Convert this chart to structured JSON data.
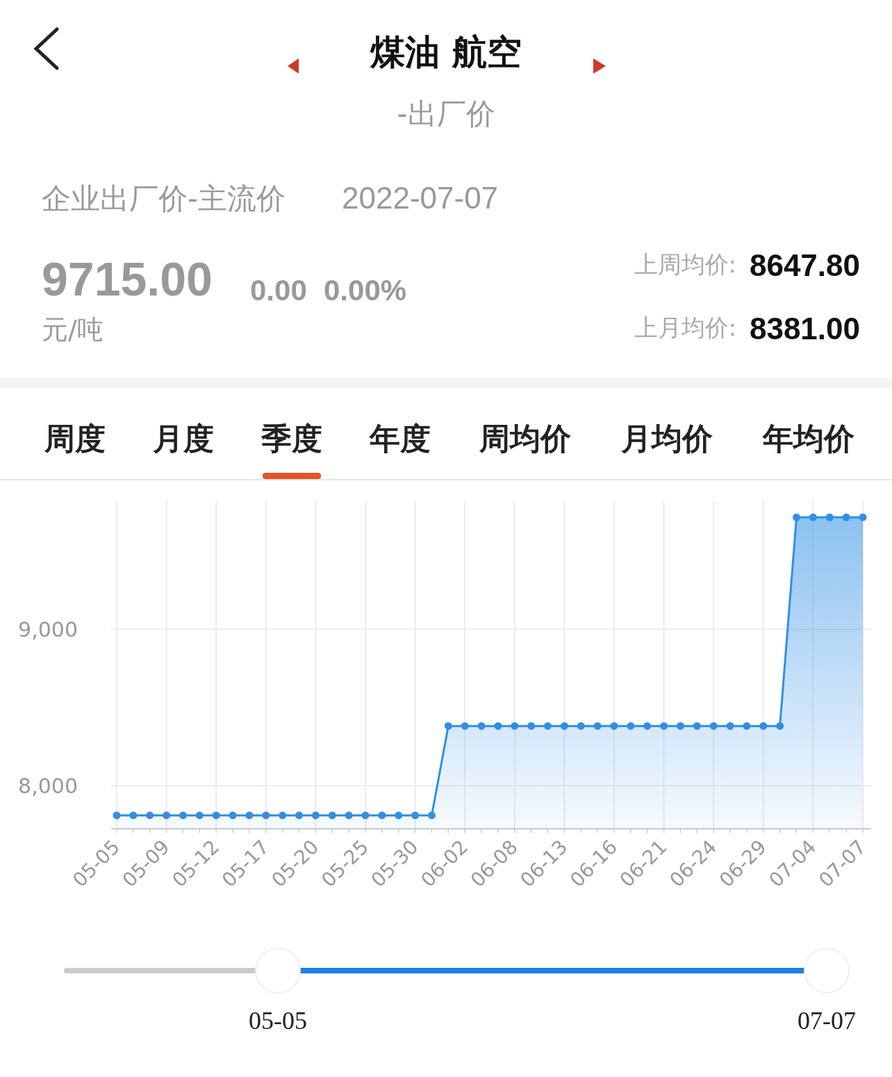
{
  "chart_data": {
    "type": "area",
    "title": "煤油 航空",
    "subtitle": "-出厂价",
    "annotations": [
      "企业出厂价-主流价",
      "2022-07-07",
      "9715.00",
      "元/吨",
      "0.00",
      "0.00%",
      "上周均价:",
      "8647.80",
      "上月均价:",
      "8381.00",
      "周度",
      "月度",
      "季度",
      "年度",
      "周均价",
      "月均价",
      "年均价",
      "05-05",
      "07-07"
    ],
    "categories": [
      "05-05",
      null,
      null,
      "05-09",
      null,
      null,
      "05-12",
      null,
      null,
      "05-17",
      null,
      null,
      "05-20",
      null,
      null,
      "05-25",
      null,
      null,
      "05-30",
      null,
      null,
      "06-02",
      null,
      null,
      "06-08",
      null,
      null,
      "06-13",
      null,
      null,
      "06-16",
      null,
      null,
      "06-21",
      null,
      null,
      "06-24",
      null,
      null,
      "06-29",
      null,
      null,
      "07-04",
      null,
      null,
      "07-07"
    ],
    "series": [
      {
        "color": "#2f8fe6",
        "values": [
          7810,
          7810,
          7810,
          7810,
          7810,
          7810,
          7810,
          7810,
          7810,
          7810,
          7810,
          7810,
          7810,
          7810,
          7810,
          7810,
          7810,
          7810,
          7810,
          7810,
          8381,
          8381,
          8381,
          8381,
          8381,
          8381,
          8381,
          8381,
          8381,
          8381,
          8381,
          8381,
          8381,
          8381,
          8381,
          8381,
          8381,
          8381,
          8381,
          8381,
          8381,
          9715,
          9715,
          9715,
          9715,
          9715
        ]
      }
    ],
    "ylim": [
      7724,
      9822
    ],
    "yticks": [
      {
        "value": 8000,
        "label": "8,000"
      },
      {
        "value": 9000,
        "label": "9,000"
      }
    ],
    "grid": true,
    "marker": "circle",
    "line_style": "solid"
  }
}
